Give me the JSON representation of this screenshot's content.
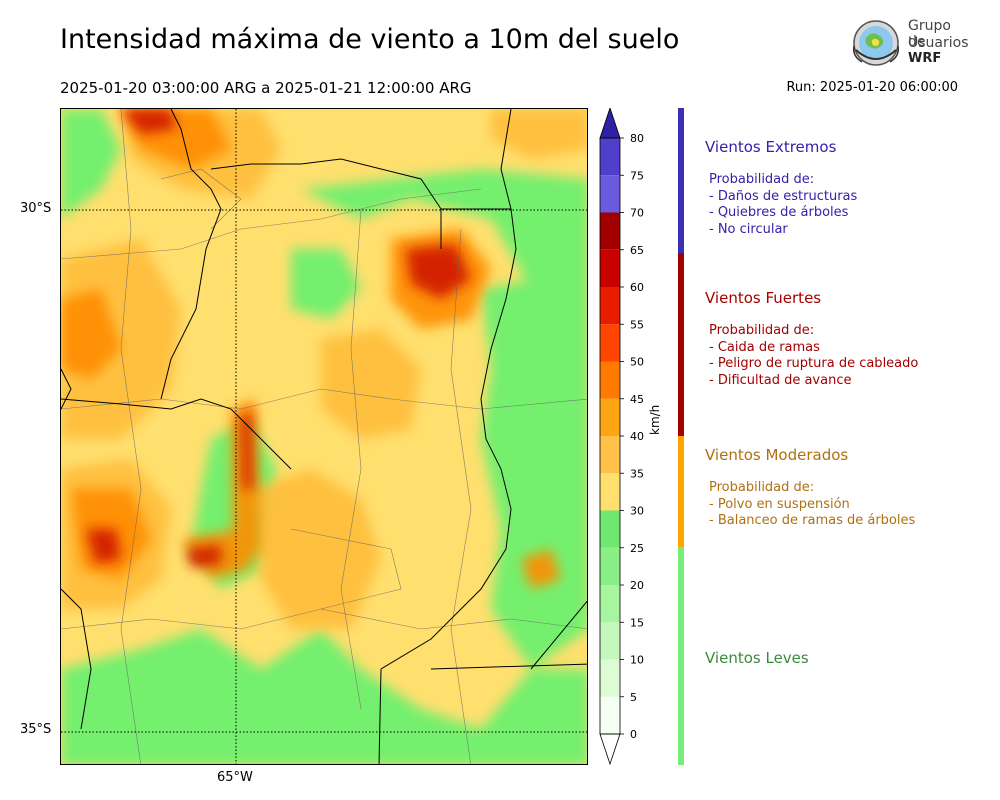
{
  "header": {
    "title": "Intensidad máxima de viento a 10m del suelo",
    "period": "2025-01-20 03:00:00 ARG  a  2025-01-21 12:00:00 ARG",
    "run": "Run: 2025-01-20 06:00:00"
  },
  "logo": {
    "line1": "Grupo de",
    "line2": "Usuarios",
    "line3": "WRF"
  },
  "map": {
    "lat_labels": [
      "30°S",
      "35°S"
    ],
    "lon_labels": [
      "65°W"
    ],
    "colors": {
      "leves": "#6ef06e",
      "moderados_low": "#ffdf6e",
      "moderados_high": "#ffbd3a",
      "fuertes_low": "#ff8c00",
      "fuertes_mid": "#ff4500",
      "fuertes_high": "#c00000"
    }
  },
  "colorbar": {
    "unit": "km/h",
    "ticks": [
      "0",
      "5",
      "10",
      "15",
      "20",
      "25",
      "30",
      "35",
      "40",
      "45",
      "50",
      "55",
      "60",
      "65",
      "70",
      "75",
      "80"
    ],
    "colors": [
      "#f5fff2",
      "#ddfcd5",
      "#c6f8be",
      "#a8f5a0",
      "#8aef86",
      "#6ee86e",
      "#ffe06e",
      "#ffc14a",
      "#ffa514",
      "#ff7a00",
      "#ff4500",
      "#e81d00",
      "#c80000",
      "#a20000",
      "#6a5ae0",
      "#4f3fcb",
      "#3b25b4"
    ],
    "over_color": "#3021a3",
    "under_color": "#ffffff"
  },
  "legend": [
    {
      "title": "Vientos Extremos",
      "color": "#3322aa",
      "items": [
        "Probabilidad de:",
        "- Daños de estructuras",
        "- Quiebres de árboles",
        "- No circular"
      ]
    },
    {
      "title": "Vientos Fuertes",
      "color": "#a50000",
      "items": [
        "Probabilidad de:",
        "- Caida de ramas",
        "- Peligro de ruptura de cableado",
        "- Dificultad de avance"
      ]
    },
    {
      "title": "Vientos Moderados",
      "color": "#b07010",
      "items": [
        "Probabilidad de:",
        "- Polvo en suspensión",
        "- Balanceo de ramas de árboles"
      ]
    },
    {
      "title": "Vientos Leves",
      "color": "#3a8a3a",
      "items": []
    }
  ],
  "severity_bar_colors": [
    "#3a2fb5",
    "#a30000",
    "#ffa500",
    "#77ee77"
  ]
}
